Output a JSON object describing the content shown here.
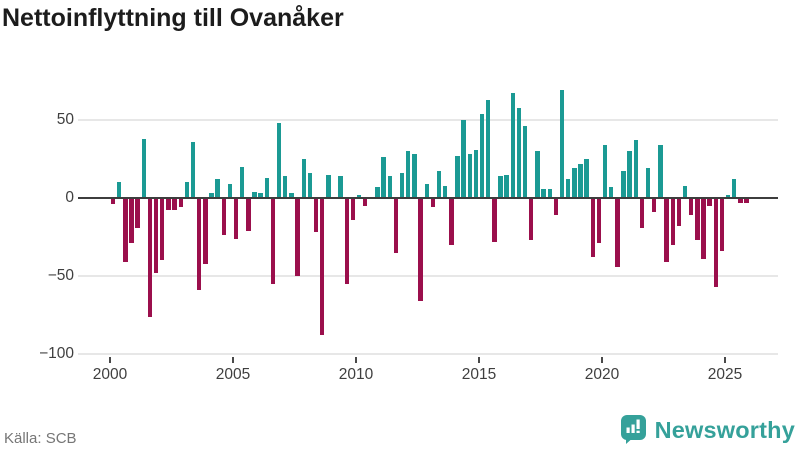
{
  "title": "Nettoinflyttning till Ovanåker",
  "source": "Källa: SCB",
  "branding": {
    "name": "Newsworthy"
  },
  "colors": {
    "positive": "#1b9a94",
    "negative": "#9b0f4c",
    "grid": "#e7e7e7",
    "zero_line": "#3d3d3d",
    "axis_text": "#3f3f3f",
    "title_text": "#1c1c1c",
    "source_text": "#767676",
    "brand": "#35a19a"
  },
  "chart_data": {
    "type": "bar",
    "title": "Nettoinflyttning till Ovanåker",
    "frequency": "quarterly",
    "start_year": 2000,
    "values": [
      -4,
      10,
      -41,
      -29,
      -19,
      38,
      -76,
      -48,
      -40,
      -8,
      -8,
      -6,
      10,
      36,
      -59,
      -42,
      3,
      12,
      -24,
      9,
      -26,
      20,
      -21,
      4,
      3,
      13,
      -55,
      48,
      14,
      3,
      -50,
      25,
      16,
      -22,
      -88,
      15,
      0,
      14,
      -55,
      -14,
      2,
      -5,
      0,
      7,
      26,
      14,
      -35,
      16,
      30,
      28,
      -66,
      9,
      -6,
      17,
      8,
      -30,
      27,
      50,
      28,
      31,
      54,
      63,
      -28,
      14,
      15,
      67,
      58,
      46,
      -27,
      30,
      6,
      6,
      -11,
      69,
      12,
      19,
      22,
      25,
      -38,
      -29,
      34,
      7,
      -44,
      17,
      30,
      37,
      -19,
      19,
      -9,
      34,
      -41,
      -30,
      -18,
      8,
      -11,
      -27,
      -39,
      -5,
      -57,
      -34,
      2,
      12,
      -3,
      -3
    ],
    "x_tick_years": [
      2000,
      2005,
      2010,
      2015,
      2020,
      2025
    ],
    "y_ticks": [
      50,
      0,
      -50,
      -100
    ],
    "y_tick_labels": [
      "50",
      "0",
      "−50",
      "−100"
    ],
    "ylim": [
      -100,
      75
    ],
    "grid": "horizontal-only",
    "legend": "none",
    "xlabel": "",
    "ylabel": ""
  }
}
